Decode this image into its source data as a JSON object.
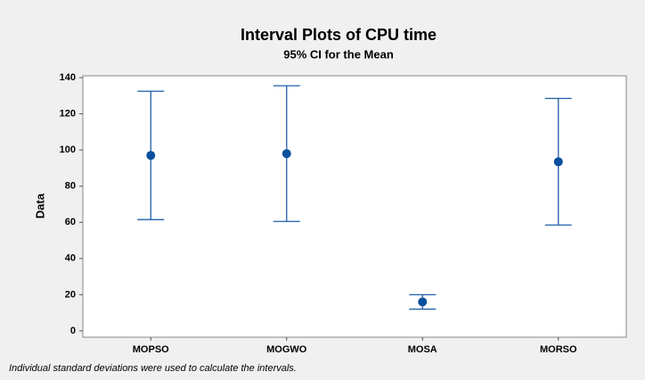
{
  "chart_data": {
    "type": "interval",
    "title": "Interval Plots of CPU time",
    "subtitle": "95% CI for the Mean",
    "y_label": "Data",
    "categories": [
      "MOPSO",
      "MOGWO",
      "MOSA",
      "MORSO"
    ],
    "values": [
      97,
      98,
      16,
      93.5
    ],
    "errors": [
      35.5,
      37.5,
      4,
      35
    ],
    "color": "#1f5fa8",
    "ylim": [
      -3.5,
      141
    ],
    "yticks": [
      0,
      20,
      40,
      60,
      80,
      100,
      120,
      140
    ],
    "footnote": "Individual standard deviations were used to calculate the intervals."
  }
}
